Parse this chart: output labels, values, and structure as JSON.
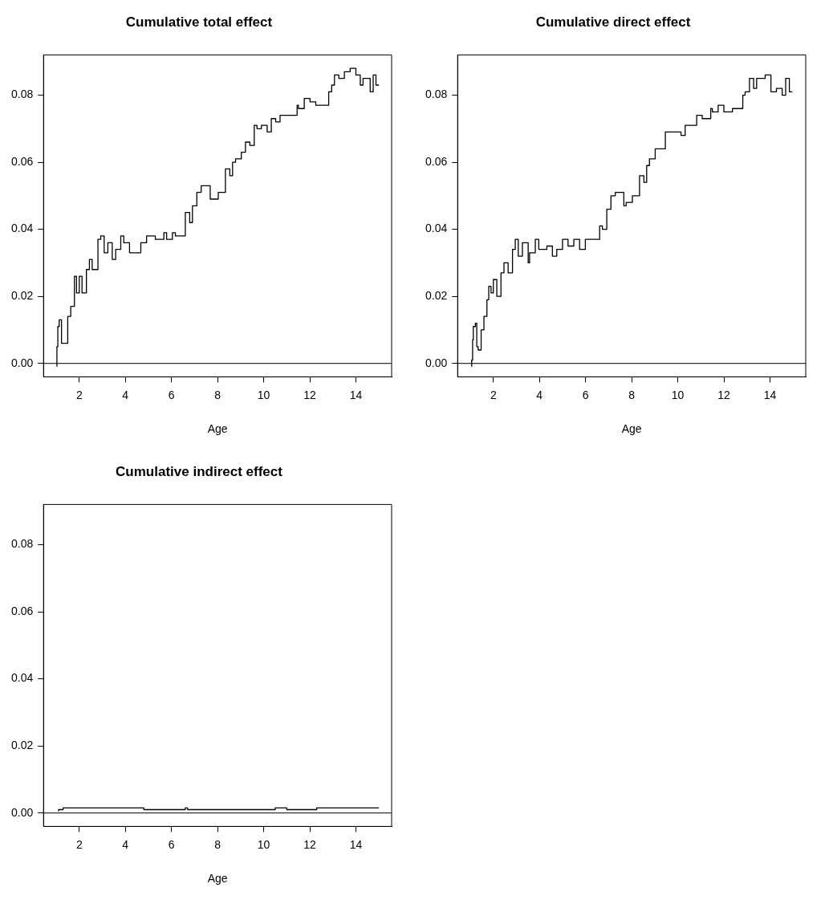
{
  "chart_data": [
    {
      "type": "step",
      "title": "Cumulative total effect",
      "xlabel": "Age",
      "xlim": [
        0.45,
        15.55
      ],
      "ylim": [
        -0.004,
        0.092
      ],
      "xticks": [
        2,
        4,
        6,
        8,
        10,
        12,
        14
      ],
      "yticks": [
        {
          "value": 0,
          "label": "0.00"
        },
        {
          "value": 0.02,
          "label": "0.02"
        },
        {
          "value": 0.04,
          "label": "0.04"
        },
        {
          "value": 0.06,
          "label": "0.06"
        },
        {
          "value": 0.08,
          "label": "0.08"
        }
      ],
      "grid": false,
      "legend": false,
      "ref_lines": [
        {
          "axis": "y",
          "value": 0,
          "color": "#000000"
        }
      ],
      "series": [
        {
          "color": "#000000",
          "x": [
            1.03,
            1.07,
            1.13,
            1.23,
            1.32,
            1.5,
            1.63,
            1.79,
            1.88,
            2.0,
            2.12,
            2.31,
            2.44,
            2.56,
            2.81,
            2.93,
            3.08,
            3.24,
            3.43,
            3.58,
            3.8,
            3.93,
            4.18,
            4.67,
            4.92,
            5.3,
            5.67,
            5.79,
            6.04,
            6.17,
            6.6,
            6.79,
            6.91,
            7.1,
            7.29,
            7.53,
            7.68,
            7.75,
            8.03,
            8.34,
            8.53,
            8.65,
            8.78,
            9.03,
            9.21,
            9.4,
            9.59,
            9.71,
            9.9,
            10.15,
            10.33,
            10.52,
            10.71,
            11.02,
            11.2,
            11.45,
            11.51,
            11.76,
            12.01,
            12.26,
            12.82,
            12.95,
            13.07,
            13.26,
            13.5,
            13.75,
            14.0,
            14.19,
            14.31,
            14.62,
            14.75,
            14.87,
            15.0
          ],
          "values": [
            -0.001,
            0.005,
            0.011,
            0.013,
            0.006,
            0.006,
            0.014,
            0.017,
            0.026,
            0.021,
            0.026,
            0.021,
            0.028,
            0.031,
            0.028,
            0.037,
            0.038,
            0.033,
            0.036,
            0.031,
            0.034,
            0.038,
            0.036,
            0.033,
            0.036,
            0.038,
            0.037,
            0.039,
            0.037,
            0.039,
            0.038,
            0.045,
            0.042,
            0.047,
            0.051,
            0.053,
            0.053,
            0.049,
            0.049,
            0.051,
            0.058,
            0.056,
            0.06,
            0.061,
            0.063,
            0.066,
            0.065,
            0.071,
            0.07,
            0.071,
            0.069,
            0.073,
            0.072,
            0.074,
            0.074,
            0.074,
            0.077,
            0.076,
            0.079,
            0.078,
            0.077,
            0.081,
            0.083,
            0.086,
            0.085,
            0.087,
            0.088,
            0.086,
            0.083,
            0.085,
            0.081,
            0.086,
            0.083
          ]
        }
      ]
    },
    {
      "type": "step",
      "title": "Cumulative direct effect",
      "xlabel": "Age",
      "xlim": [
        0.45,
        15.55
      ],
      "ylim": [
        -0.004,
        0.092
      ],
      "xticks": [
        2,
        4,
        6,
        8,
        10,
        12,
        14
      ],
      "yticks": [
        {
          "value": 0,
          "label": "0.00"
        },
        {
          "value": 0.02,
          "label": "0.02"
        },
        {
          "value": 0.04,
          "label": "0.04"
        },
        {
          "value": 0.06,
          "label": "0.06"
        },
        {
          "value": 0.08,
          "label": "0.08"
        }
      ],
      "grid": false,
      "legend": false,
      "ref_lines": [
        {
          "axis": "y",
          "value": 0,
          "color": "#000000"
        }
      ],
      "series": [
        {
          "color": "#000000",
          "x": [
            1.06,
            1.1,
            1.13,
            1.22,
            1.28,
            1.34,
            1.47,
            1.59,
            1.72,
            1.8,
            1.9,
            2.0,
            2.15,
            2.33,
            2.46,
            2.64,
            2.83,
            2.95,
            3.08,
            3.26,
            3.51,
            3.57,
            3.82,
            3.97,
            4.32,
            4.56,
            4.75,
            5.0,
            5.24,
            5.49,
            5.74,
            5.99,
            6.17,
            6.61,
            6.73,
            6.92,
            7.1,
            7.29,
            7.47,
            7.66,
            7.76,
            8.03,
            8.34,
            8.53,
            8.65,
            8.77,
            9.02,
            9.21,
            9.46,
            9.58,
            9.95,
            10.14,
            10.32,
            10.54,
            10.82,
            11.06,
            11.43,
            11.5,
            11.75,
            12.0,
            12.37,
            12.55,
            12.82,
            12.92,
            13.11,
            13.29,
            13.42,
            13.6,
            13.79,
            14.04,
            14.28,
            14.53,
            14.68,
            14.84,
            14.97
          ],
          "values": [
            -0.001,
            0.001,
            0.007,
            0.011,
            0.012,
            0.005,
            0.004,
            0.01,
            0.014,
            0.019,
            0.023,
            0.021,
            0.025,
            0.02,
            0.027,
            0.03,
            0.027,
            0.034,
            0.037,
            0.032,
            0.036,
            0.03,
            0.033,
            0.037,
            0.034,
            0.035,
            0.032,
            0.034,
            0.037,
            0.035,
            0.037,
            0.034,
            0.037,
            0.037,
            0.041,
            0.04,
            0.046,
            0.05,
            0.051,
            0.051,
            0.047,
            0.048,
            0.05,
            0.056,
            0.054,
            0.059,
            0.061,
            0.064,
            0.064,
            0.069,
            0.069,
            0.069,
            0.068,
            0.071,
            0.071,
            0.074,
            0.073,
            0.076,
            0.075,
            0.077,
            0.075,
            0.076,
            0.076,
            0.08,
            0.081,
            0.085,
            0.082,
            0.085,
            0.085,
            0.086,
            0.081,
            0.082,
            0.08,
            0.085,
            0.081
          ]
        }
      ]
    },
    {
      "type": "step",
      "title": "Cumulative indirect effect",
      "xlabel": "Age",
      "xlim": [
        0.45,
        15.55
      ],
      "ylim": [
        -0.004,
        0.092
      ],
      "xticks": [
        2,
        4,
        6,
        8,
        10,
        12,
        14
      ],
      "yticks": [
        {
          "value": 0,
          "label": "0.00"
        },
        {
          "value": 0.02,
          "label": "0.02"
        },
        {
          "value": 0.04,
          "label": "0.04"
        },
        {
          "value": 0.06,
          "label": "0.06"
        },
        {
          "value": 0.08,
          "label": "0.08"
        }
      ],
      "grid": false,
      "legend": false,
      "ref_lines": [
        {
          "axis": "y",
          "value": 0,
          "color": "#000000"
        }
      ],
      "series": [
        {
          "color": "#000000",
          "x": [
            1.1,
            1.3,
            4.8,
            6.6,
            6.7,
            10.5,
            11.0,
            12.3,
            12.7,
            15.0
          ],
          "values": [
            0.0005,
            0.001,
            0.0015,
            0.001,
            0.0015,
            0.001,
            0.0015,
            0.001,
            0.0015,
            0.0015
          ]
        }
      ]
    }
  ]
}
